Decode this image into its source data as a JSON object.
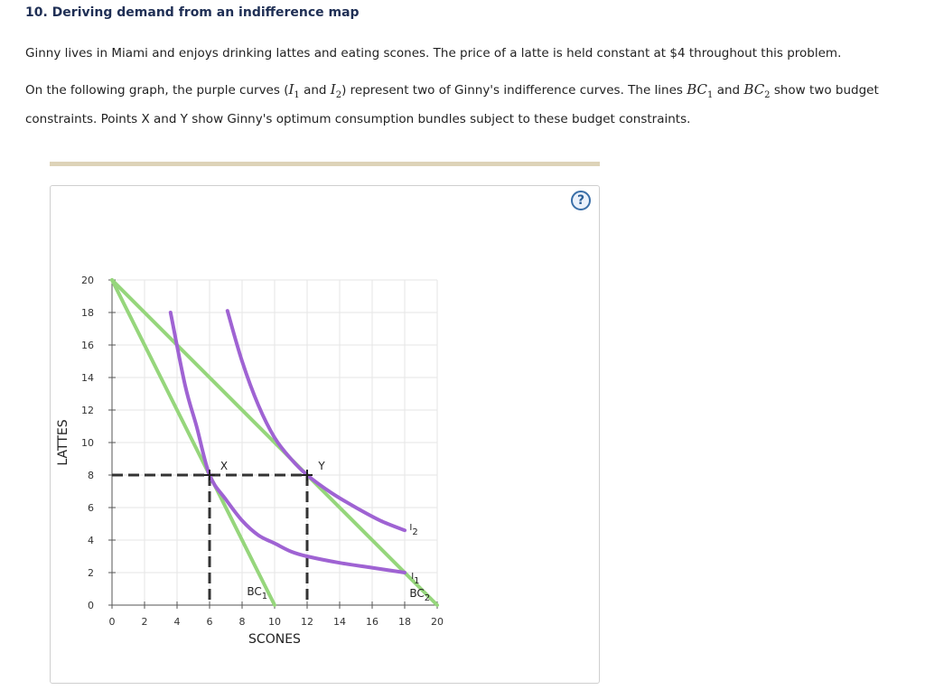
{
  "question": {
    "title": "10. Deriving demand from an indifference map",
    "paragraph1": "Ginny lives in Miami and enjoys drinking lattes and eating scones. The price of a latte is held constant at $4 throughout this problem.",
    "p2_a": "On the following graph, the purple curves (",
    "i1_letter": "I",
    "i1_sub": "1",
    "p2_and1": " and ",
    "i2_letter": "I",
    "i2_sub": "2",
    "p2_b": ") represent two of Ginny's indifference curves. The lines ",
    "bc1_letter": "BC",
    "bc1_sub": "1",
    "p2_and2": " and ",
    "bc2_letter": "BC",
    "bc2_sub": "2",
    "p2_c": " show two budget constraints. Points X and Y show Ginny's optimum consumption bundles subject to these budget constraints."
  },
  "help_icon": "question-mark-icon",
  "help_label": "?",
  "chart_data": {
    "type": "line",
    "xlabel": "SCONES",
    "ylabel": "LATTES",
    "xlim": [
      0,
      20
    ],
    "ylim": [
      0,
      20
    ],
    "x_ticks": [
      "0",
      "2",
      "4",
      "6",
      "8",
      "10",
      "12",
      "14",
      "16",
      "18",
      "20"
    ],
    "y_ticks": [
      "0",
      "2",
      "4",
      "6",
      "8",
      "10",
      "12",
      "14",
      "16",
      "18",
      "20"
    ],
    "grid": true,
    "colors": {
      "indifference": "#9f63d3",
      "budget": "#96d67c",
      "dashed": "#333333",
      "grid": "#e6e6e6"
    },
    "budget_lines": [
      {
        "name": "BC",
        "sub": "1",
        "points": [
          [
            0,
            20
          ],
          [
            10,
            0
          ]
        ],
        "label_at": [
          8.3,
          0.6
        ]
      },
      {
        "name": "BC",
        "sub": "2",
        "points": [
          [
            0,
            20
          ],
          [
            20,
            0
          ]
        ],
        "label_at": [
          18.3,
          0.5
        ]
      }
    ],
    "indifference_curves": [
      {
        "name": "I",
        "sub": "1",
        "points": [
          [
            3.6,
            18
          ],
          [
            4.5,
            13.5
          ],
          [
            5.2,
            11
          ],
          [
            6,
            8
          ],
          [
            7,
            6.5
          ],
          [
            8,
            5.2
          ],
          [
            9,
            4.3
          ],
          [
            10,
            3.8
          ],
          [
            11,
            3.3
          ],
          [
            12,
            3.0
          ],
          [
            14,
            2.6
          ],
          [
            16,
            2.3
          ],
          [
            18,
            2.0
          ]
        ],
        "label_at": [
          18.4,
          1.6
        ]
      },
      {
        "name": "I",
        "sub": "2",
        "points": [
          [
            7.1,
            18.1
          ],
          [
            8,
            15
          ],
          [
            9,
            12.3
          ],
          [
            10,
            10.3
          ],
          [
            11,
            9
          ],
          [
            12,
            8
          ],
          [
            13.5,
            6.9
          ],
          [
            15,
            6.0
          ],
          [
            16.5,
            5.2
          ],
          [
            18,
            4.6
          ]
        ],
        "label_at": [
          18.3,
          4.6
        ]
      }
    ],
    "optimum_points": [
      {
        "name": "X",
        "x": 6,
        "y": 8
      },
      {
        "name": "Y",
        "x": 12,
        "y": 8
      }
    ]
  }
}
